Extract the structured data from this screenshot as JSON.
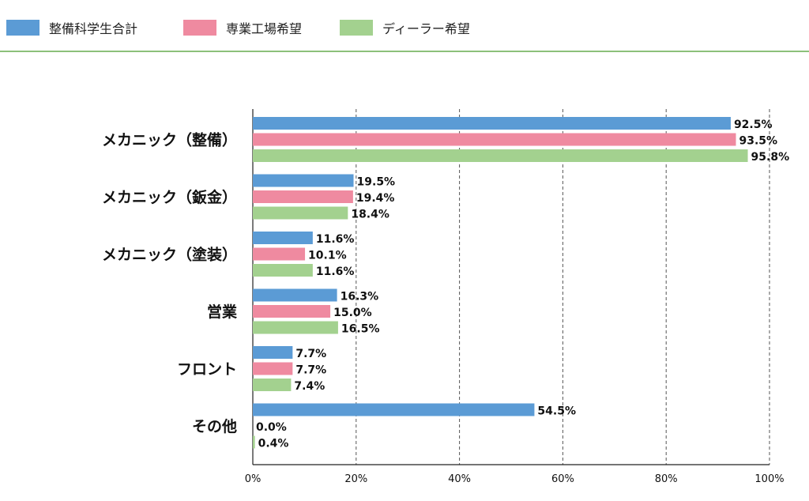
{
  "chart_data": {
    "type": "bar",
    "orientation": "horizontal",
    "categories": [
      "メカニック（整備）",
      "メカニック（鈑金）",
      "メカニック（塗装）",
      "営業",
      "フロント",
      "その他"
    ],
    "series": [
      {
        "name": "整備科学生合計",
        "color": "#5b9bd5",
        "values": [
          92.5,
          19.5,
          11.6,
          16.3,
          7.7,
          54.5
        ]
      },
      {
        "name": "専業工場希望",
        "color": "#ef8aa0",
        "values": [
          93.5,
          19.4,
          10.1,
          15.0,
          7.7,
          0.0
        ]
      },
      {
        "name": "ディーラー希望",
        "color": "#a3d18f",
        "values": [
          95.8,
          18.4,
          11.6,
          16.5,
          7.4,
          0.4
        ]
      }
    ],
    "xlim": [
      0,
      100
    ],
    "xticks": [
      0,
      20,
      40,
      60,
      80,
      100
    ],
    "tick_format": "%",
    "value_format": "%",
    "grid": "vertical dashed",
    "legend_position": "top"
  }
}
